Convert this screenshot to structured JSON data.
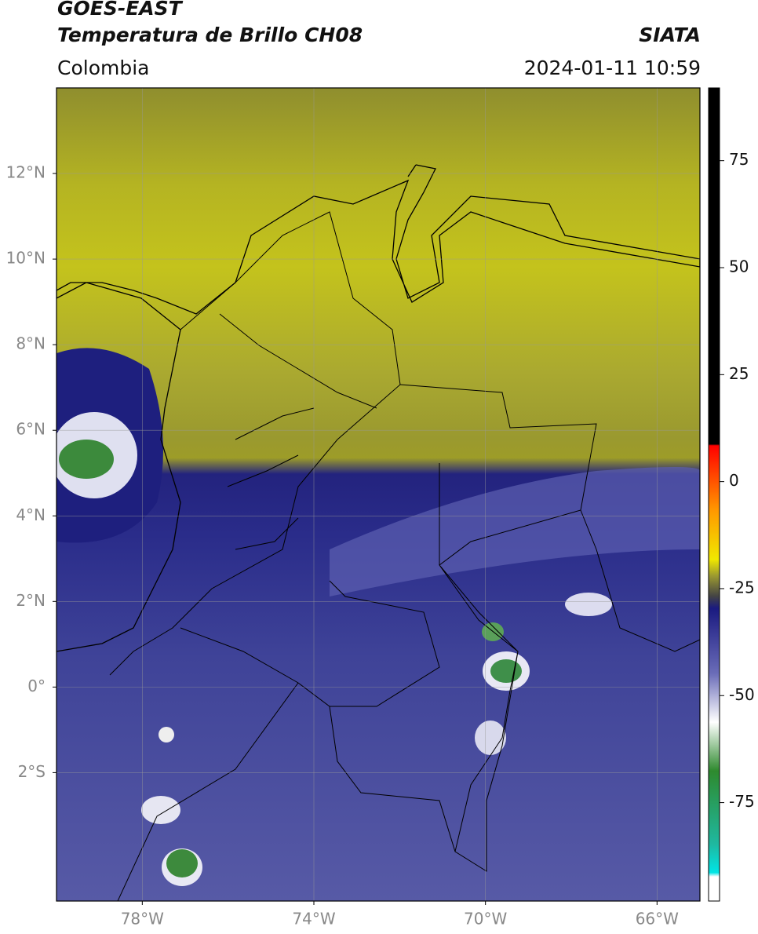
{
  "header": {
    "title_line1": "GOES-EAST",
    "title_line2": "Temperatura de Brillo CH08",
    "brand": "SIATA",
    "region": "Colombia",
    "timestamp": "2024-01-11 10:59"
  },
  "map": {
    "xlim": [
      -80,
      -65
    ],
    "ylim": [
      -5,
      14
    ],
    "lon_ticks": [
      {
        "value": -78,
        "label": "78°W"
      },
      {
        "value": -74,
        "label": "74°W"
      },
      {
        "value": -70,
        "label": "70°W"
      },
      {
        "value": -66,
        "label": "66°W"
      }
    ],
    "lat_ticks": [
      {
        "value": 12,
        "label": "12°N"
      },
      {
        "value": 10,
        "label": "10°N"
      },
      {
        "value": 8,
        "label": "8°N"
      },
      {
        "value": 6,
        "label": "6°N"
      },
      {
        "value": 4,
        "label": "4°N"
      },
      {
        "value": 2,
        "label": "2°N"
      },
      {
        "value": 0,
        "label": "0°"
      },
      {
        "value": -2,
        "label": "2°S"
      }
    ]
  },
  "colorbar": {
    "lim": [
      -98,
      92
    ],
    "ticks": [
      75,
      50,
      25,
      0,
      -25,
      -50,
      -75
    ]
  }
}
